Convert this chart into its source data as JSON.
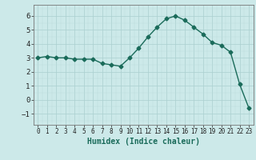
{
  "x": [
    0,
    1,
    2,
    3,
    4,
    5,
    6,
    7,
    8,
    9,
    10,
    11,
    12,
    13,
    14,
    15,
    16,
    17,
    18,
    19,
    20,
    21,
    22,
    23
  ],
  "y": [
    3.0,
    3.1,
    3.0,
    3.0,
    2.9,
    2.9,
    2.9,
    2.6,
    2.5,
    2.4,
    3.0,
    3.7,
    4.5,
    5.2,
    5.8,
    6.0,
    5.7,
    5.2,
    4.7,
    4.1,
    3.9,
    3.4,
    1.1,
    -0.6
  ],
  "line_color": "#1a6b5a",
  "marker": "D",
  "markersize": 2.5,
  "linewidth": 1.0,
  "bg_color": "#cce9e9",
  "grid_major_color": "#aacfcf",
  "grid_minor_color": "#bbdcdc",
  "xlabel": "Humidex (Indice chaleur)",
  "xlabel_fontsize": 7,
  "tick_fontsize": 6.5,
  "ylim": [
    -1.8,
    6.8
  ],
  "xlim": [
    -0.5,
    23.5
  ],
  "yticks": [
    -1,
    0,
    1,
    2,
    3,
    4,
    5,
    6
  ],
  "xticks": [
    0,
    1,
    2,
    3,
    4,
    5,
    6,
    7,
    8,
    9,
    10,
    11,
    12,
    13,
    14,
    15,
    16,
    17,
    18,
    19,
    20,
    21,
    22,
    23
  ]
}
